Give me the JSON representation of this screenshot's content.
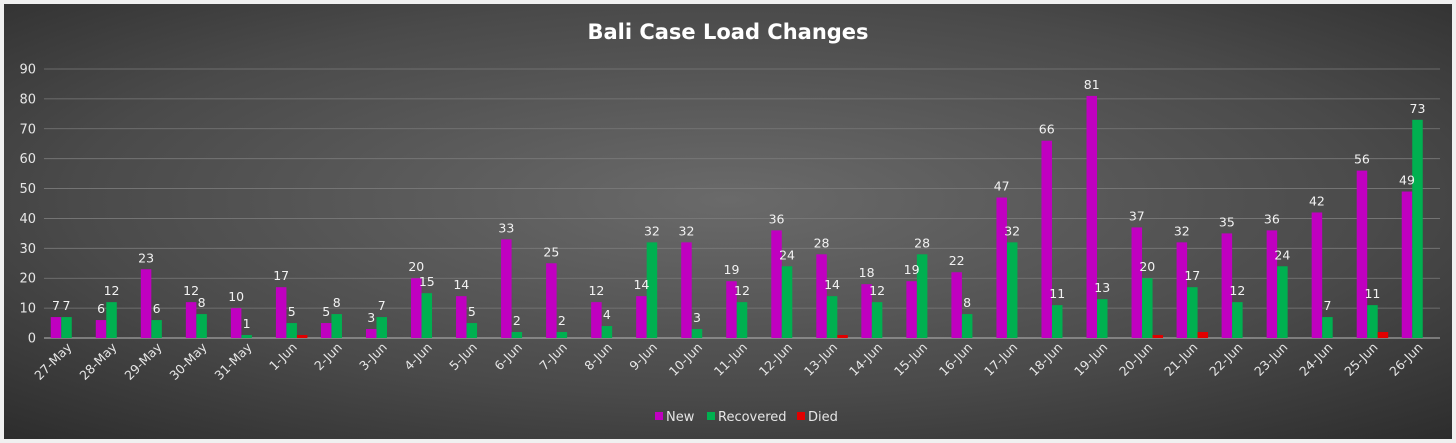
{
  "chart_data": {
    "type": "bar",
    "title": "Bali Case Load Changes",
    "xlabel": "",
    "ylabel": "",
    "ylim": [
      0,
      90
    ],
    "yticks": [
      0,
      10,
      20,
      30,
      40,
      50,
      60,
      70,
      80,
      90
    ],
    "grid": true,
    "legend_position": "bottom",
    "categories": [
      "27-May",
      "28-May",
      "29-May",
      "30-May",
      "31-May",
      "1-Jun",
      "2-Jun",
      "3-Jun",
      "4-Jun",
      "5-Jun",
      "6-Jun",
      "7-Jun",
      "8-Jun",
      "9-Jun",
      "10-Jun",
      "11-Jun",
      "12-Jun",
      "13-Jun",
      "14-Jun",
      "15-Jun",
      "16-Jun",
      "17-Jun",
      "18-Jun",
      "19-Jun",
      "20-Jun",
      "21-Jun",
      "22-Jun",
      "23-Jun",
      "24-Jun",
      "25-Jun",
      "26-Jun"
    ],
    "series": [
      {
        "name": "New",
        "color": "#c000c0",
        "values": [
          7,
          6,
          23,
          12,
          10,
          17,
          5,
          3,
          20,
          14,
          33,
          25,
          12,
          14,
          32,
          19,
          36,
          28,
          18,
          19,
          22,
          47,
          66,
          81,
          37,
          32,
          35,
          36,
          42,
          56,
          49
        ],
        "labels": [
          "7",
          "6",
          "23",
          "12",
          "10",
          "17",
          "5",
          "3",
          "20",
          "14",
          "33",
          "25",
          "12",
          "14",
          "32",
          "19",
          "36",
          "28",
          "18",
          "19",
          "22",
          "47",
          "66",
          "81",
          "37",
          "32",
          "35",
          "36",
          "42",
          "56",
          "49"
        ]
      },
      {
        "name": "Recovered",
        "color": "#00b050",
        "values": [
          7,
          12,
          6,
          8,
          1,
          5,
          8,
          7,
          15,
          5,
          2,
          2,
          4,
          32,
          3,
          12,
          24,
          14,
          12,
          28,
          8,
          32,
          11,
          13,
          20,
          17,
          12,
          24,
          7,
          11,
          73
        ],
        "labels": [
          "7",
          "12",
          "6",
          "8",
          "1",
          "5",
          "8",
          "7",
          "15",
          "5",
          "2",
          "2",
          "4",
          "32",
          "3",
          "12",
          "24",
          "14",
          "12",
          "28",
          "8",
          "32",
          "11",
          "13",
          "20",
          "17",
          "12",
          "24",
          "7",
          "11",
          "73"
        ]
      },
      {
        "name": "Died",
        "color": "#e00000",
        "values": [
          0,
          0,
          0,
          0,
          0,
          1,
          0,
          0,
          0,
          0,
          0,
          0,
          0,
          0,
          0,
          0,
          0,
          1,
          0,
          0,
          0,
          0,
          0,
          0,
          1,
          2,
          0,
          0,
          0,
          2,
          0
        ],
        "labels": [
          "",
          "",
          "",
          "",
          "",
          "",
          "",
          "",
          "",
          "",
          "",
          "",
          "",
          "",
          "",
          "",
          "",
          "",
          "",
          "",
          "",
          "",
          "",
          "",
          "",
          "",
          "",
          "",
          "",
          "",
          ""
        ]
      }
    ]
  }
}
